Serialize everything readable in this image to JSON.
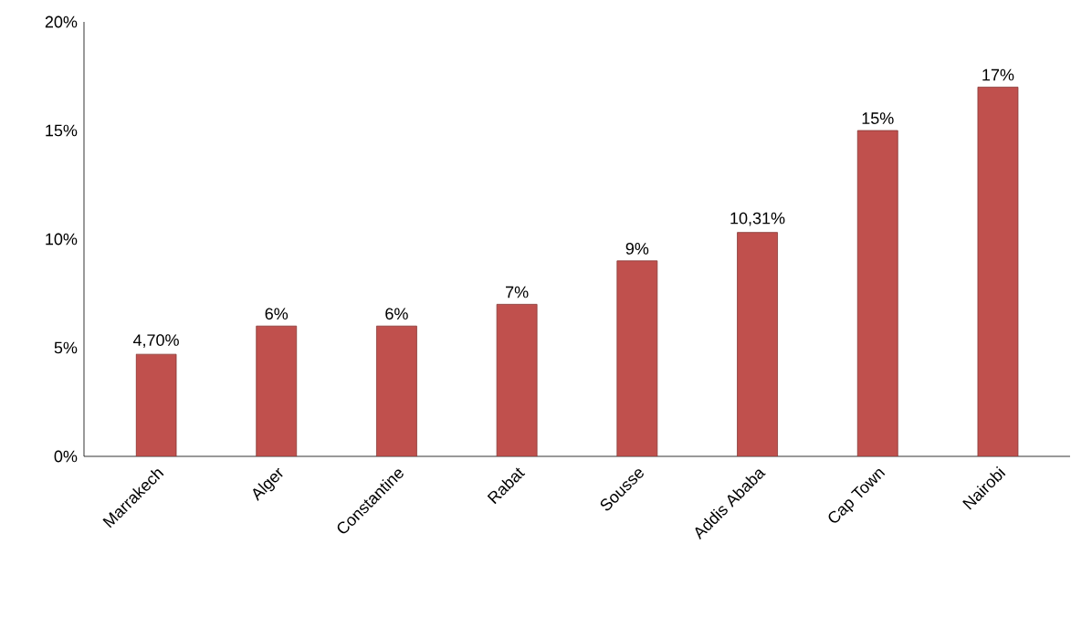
{
  "chart_data": {
    "type": "bar",
    "categories": [
      "Marrakech",
      "Alger",
      "Constantine",
      "Rabat",
      "Sousse",
      "Addis Ababa",
      "Cap Town",
      "Nairobi"
    ],
    "values": [
      4.7,
      6,
      6,
      7,
      9,
      10.31,
      15,
      17
    ],
    "value_labels": [
      "4,70%",
      "6%",
      "6%",
      "7%",
      "9%",
      "10,31%",
      "15%",
      "17%"
    ],
    "color": "#c0504d",
    "ylim": [
      0,
      20
    ],
    "yticks": [
      {
        "value": 0,
        "label": "0%"
      },
      {
        "value": 5,
        "label": "5%"
      },
      {
        "value": 10,
        "label": "10%"
      },
      {
        "value": 15,
        "label": "15%"
      },
      {
        "value": 20,
        "label": "20%"
      }
    ],
    "grid": false
  }
}
